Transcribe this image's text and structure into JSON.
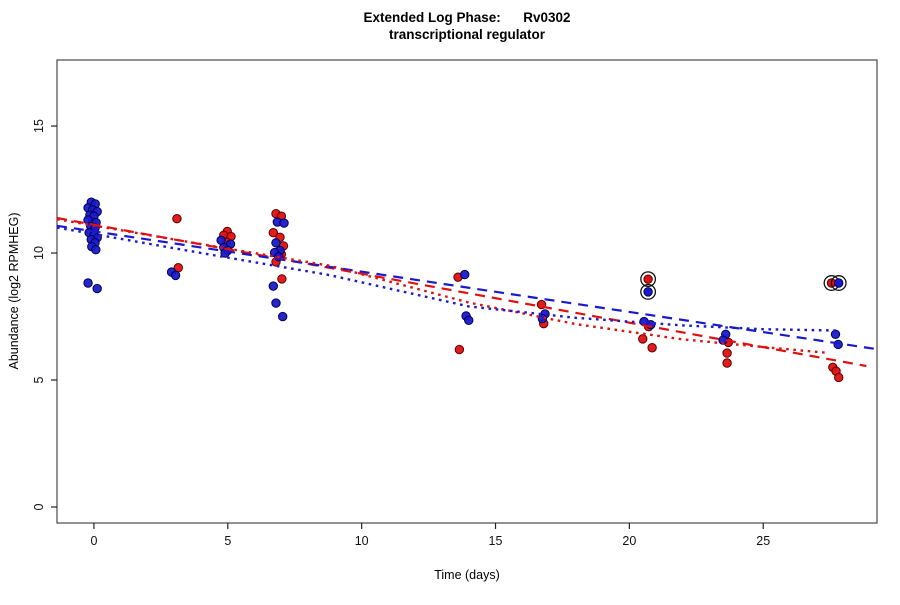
{
  "chart_data": {
    "type": "scatter",
    "title": "Extended Log Phase:      Rv0302",
    "subtitle": "transcriptional regulator",
    "xlabel": "Time  (days)",
    "ylabel": "Abundance  (log2 RPMHEG)",
    "xlim": [
      -1.38,
      29.25
    ],
    "ylim": [
      -0.63,
      17.6
    ],
    "x_ticks": [
      0,
      5,
      10,
      15,
      20,
      25
    ],
    "y_ticks": [
      0,
      5,
      10,
      15
    ],
    "grid": false,
    "legend": "none",
    "box_color": "#4a4a4a",
    "series": [
      {
        "name": "red-condition",
        "color": "#e01010",
        "edge_color": "#5a0000",
        "points": [
          [
            -0.05,
            11.26
          ],
          [
            0.0,
            10.87
          ],
          [
            3.1,
            11.35
          ],
          [
            3.15,
            9.42
          ],
          [
            4.98,
            10.85
          ],
          [
            4.85,
            10.7
          ],
          [
            5.12,
            10.65
          ],
          [
            4.95,
            10.43
          ],
          [
            6.8,
            11.55
          ],
          [
            7.0,
            11.45
          ],
          [
            6.7,
            10.8
          ],
          [
            6.95,
            10.62
          ],
          [
            7.08,
            10.28
          ],
          [
            7.0,
            9.95
          ],
          [
            6.8,
            9.65
          ],
          [
            7.02,
            8.98
          ],
          [
            13.6,
            9.05
          ],
          [
            13.65,
            6.2
          ],
          [
            16.72,
            7.97
          ],
          [
            16.8,
            7.22
          ],
          [
            20.72,
            7.1
          ],
          [
            20.5,
            6.62
          ],
          [
            20.85,
            6.27
          ],
          [
            23.7,
            6.48
          ],
          [
            23.65,
            6.06
          ],
          [
            23.65,
            5.67
          ],
          [
            27.6,
            5.5
          ],
          [
            27.72,
            5.35
          ],
          [
            27.82,
            5.1
          ]
        ]
      },
      {
        "name": "blue-condition",
        "color": "#1a1acc",
        "edge_color": "#000050",
        "points": [
          [
            -0.1,
            12.0
          ],
          [
            0.05,
            11.93
          ],
          [
            -0.22,
            11.78
          ],
          [
            -0.05,
            11.7
          ],
          [
            0.12,
            11.63
          ],
          [
            -0.15,
            11.5
          ],
          [
            0.0,
            11.45
          ],
          [
            -0.22,
            11.3
          ],
          [
            0.08,
            11.2
          ],
          [
            -0.12,
            11.05
          ],
          [
            0.04,
            10.98
          ],
          [
            -0.18,
            10.8
          ],
          [
            0.0,
            10.7
          ],
          [
            0.12,
            10.6
          ],
          [
            -0.1,
            10.53
          ],
          [
            0.04,
            10.4
          ],
          [
            -0.08,
            10.25
          ],
          [
            0.07,
            10.13
          ],
          [
            -0.22,
            8.82
          ],
          [
            0.12,
            8.6
          ],
          [
            2.9,
            9.25
          ],
          [
            3.05,
            9.12
          ],
          [
            4.75,
            10.5
          ],
          [
            5.1,
            10.35
          ],
          [
            4.85,
            10.22
          ],
          [
            5.0,
            10.1
          ],
          [
            4.9,
            10.0
          ],
          [
            6.85,
            11.22
          ],
          [
            7.1,
            11.18
          ],
          [
            6.8,
            10.4
          ],
          [
            6.95,
            10.1
          ],
          [
            6.75,
            10.02
          ],
          [
            6.9,
            9.85
          ],
          [
            6.7,
            8.7
          ],
          [
            6.8,
            8.03
          ],
          [
            7.05,
            7.5
          ],
          [
            13.85,
            9.15
          ],
          [
            13.9,
            7.52
          ],
          [
            14.0,
            7.35
          ],
          [
            16.85,
            7.6
          ],
          [
            16.75,
            7.42
          ],
          [
            20.55,
            7.3
          ],
          [
            20.8,
            7.18
          ],
          [
            23.6,
            6.8
          ],
          [
            23.5,
            6.57
          ],
          [
            27.7,
            6.8
          ],
          [
            27.8,
            6.4
          ]
        ]
      }
    ],
    "circled_points": [
      {
        "x": 20.7,
        "y": 8.97,
        "series": "red-condition"
      },
      {
        "x": 20.7,
        "y": 8.47,
        "series": "blue-condition"
      },
      {
        "x": 27.55,
        "y": 8.82,
        "series": "red-condition"
      },
      {
        "x": 27.82,
        "y": 8.82,
        "series": "blue-condition"
      }
    ],
    "fit_lines": [
      {
        "name": "red-linear-fit",
        "color": "#e01010",
        "style": "dashed",
        "points": [
          [
            -1.38,
            11.38
          ],
          [
            28.85,
            5.55
          ]
        ]
      },
      {
        "name": "blue-linear-fit",
        "color": "#1a1acc",
        "style": "dashed",
        "points": [
          [
            -1.38,
            11.07
          ],
          [
            29.2,
            6.22
          ]
        ]
      },
      {
        "name": "red-smooth-fit",
        "color": "#e01010",
        "style": "dotted",
        "points": [
          [
            -1.38,
            11.33
          ],
          [
            4,
            10.35
          ],
          [
            8.8,
            9.5
          ],
          [
            14,
            8.05
          ],
          [
            18,
            7.2
          ],
          [
            22,
            6.6
          ],
          [
            25,
            6.3
          ],
          [
            27.3,
            6.08
          ]
        ]
      },
      {
        "name": "blue-smooth-fit",
        "color": "#1a1acc",
        "style": "dotted",
        "points": [
          [
            -1.38,
            11.0
          ],
          [
            4,
            10.0
          ],
          [
            8.8,
            9.13
          ],
          [
            14,
            7.9
          ],
          [
            18,
            7.45
          ],
          [
            22,
            7.15
          ],
          [
            25,
            7.0
          ],
          [
            27.7,
            6.95
          ]
        ]
      }
    ]
  }
}
